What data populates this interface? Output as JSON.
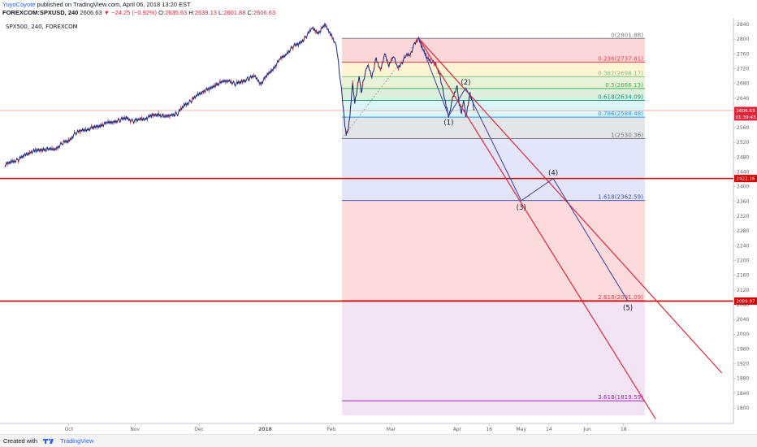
{
  "header": {
    "author": "YuyoCoyote",
    "published": "published on TradingView.com, April 06, 2018 13:20 EST",
    "symbol": "FOREXCOM:SPXUSD, 240",
    "last": "2606.63",
    "change": "▼ −24.25 (−0.92%)",
    "open_label": "O:",
    "open": "2635.63",
    "high_label": "H:",
    "high": "2639.13",
    "low_label": "L:",
    "low": "2601.88",
    "close_label": "C:",
    "close": "2606.63"
  },
  "footer": {
    "created_with": "Created with",
    "brand": "TradingView"
  },
  "chart_data": {
    "type": "line",
    "legend": "SPX500, 240, FOREXCOM",
    "ylim": [
      1780,
      2850
    ],
    "yticks": [
      1800,
      1840,
      1880,
      1920,
      1960,
      2000,
      2040,
      2080,
      2120,
      2160,
      2200,
      2240,
      2280,
      2320,
      2360,
      2400,
      2440,
      2480,
      2520,
      2560,
      2600,
      2640,
      2680,
      2720,
      2760,
      2800,
      2840
    ],
    "xticks": [
      {
        "label": "Oct",
        "day": 30,
        "bold": false
      },
      {
        "label": "Nov",
        "day": 61,
        "bold": false
      },
      {
        "label": "Dec",
        "day": 91,
        "bold": false
      },
      {
        "label": "2018",
        "day": 122,
        "bold": true
      },
      {
        "label": "Feb",
        "day": 153,
        "bold": false
      },
      {
        "label": "Mar",
        "day": 181,
        "bold": false
      },
      {
        "label": "Apr",
        "day": 212,
        "bold": false
      },
      {
        "label": "16",
        "day": 227,
        "bold": false
      },
      {
        "label": "May",
        "day": 242,
        "bold": false
      },
      {
        "label": "14",
        "day": 255,
        "bold": false
      },
      {
        "label": "Jun",
        "day": 273,
        "bold": false
      },
      {
        "label": "18",
        "day": 290,
        "bold": false
      }
    ],
    "series": [
      {
        "values": [
          [
            0,
            2458
          ],
          [
            3,
            2468
          ],
          [
            6,
            2472
          ],
          [
            9,
            2484
          ],
          [
            12,
            2495
          ],
          [
            15,
            2497
          ],
          [
            18,
            2502
          ],
          [
            21,
            2500
          ],
          [
            24,
            2503
          ],
          [
            27,
            2519
          ],
          [
            30,
            2524
          ],
          [
            33,
            2545
          ],
          [
            36,
            2552
          ],
          [
            39,
            2557
          ],
          [
            42,
            2560
          ],
          [
            45,
            2567
          ],
          [
            48,
            2572
          ],
          [
            51,
            2576
          ],
          [
            54,
            2581
          ],
          [
            57,
            2587
          ],
          [
            60,
            2577
          ],
          [
            63,
            2582
          ],
          [
            66,
            2586
          ],
          [
            69,
            2592
          ],
          [
            72,
            2597
          ],
          [
            75,
            2588
          ],
          [
            78,
            2595
          ],
          [
            81,
            2598
          ],
          [
            84,
            2621
          ],
          [
            87,
            2631
          ],
          [
            90,
            2647
          ],
          [
            93,
            2660
          ],
          [
            96,
            2664
          ],
          [
            99,
            2678
          ],
          [
            102,
            2683
          ],
          [
            105,
            2688
          ],
          [
            108,
            2678
          ],
          [
            111,
            2685
          ],
          [
            114,
            2692
          ],
          [
            117,
            2700
          ],
          [
            120,
            2680
          ],
          [
            123,
            2702
          ],
          [
            126,
            2722
          ],
          [
            129,
            2745
          ],
          [
            132,
            2760
          ],
          [
            135,
            2780
          ],
          [
            138,
            2788
          ],
          [
            141,
            2805
          ],
          [
            144,
            2830
          ],
          [
            147,
            2818
          ],
          [
            150,
            2838
          ],
          [
            153,
            2812
          ],
          [
            155,
            2788
          ],
          [
            156,
            2755
          ],
          [
            157,
            2702
          ],
          [
            158,
            2648
          ],
          [
            159,
            2588
          ],
          [
            160,
            2540
          ],
          [
            161,
            2560
          ],
          [
            162,
            2610
          ],
          [
            163,
            2680
          ],
          [
            164,
            2625
          ],
          [
            165,
            2660
          ],
          [
            166,
            2705
          ],
          [
            167,
            2650
          ],
          [
            168,
            2688
          ],
          [
            170,
            2730
          ],
          [
            172,
            2700
          ],
          [
            174,
            2745
          ],
          [
            176,
            2715
          ],
          [
            178,
            2760
          ],
          [
            180,
            2728
          ],
          [
            182,
            2758
          ],
          [
            184,
            2720
          ],
          [
            186,
            2735
          ],
          [
            188,
            2755
          ],
          [
            190,
            2760
          ],
          [
            192,
            2785
          ],
          [
            194,
            2801.88
          ],
          [
            196,
            2770
          ],
          [
            198,
            2750
          ],
          [
            200,
            2740
          ],
          [
            202,
            2730
          ],
          [
            204,
            2700
          ],
          [
            206,
            2640
          ],
          [
            208,
            2592
          ],
          [
            210,
            2640
          ],
          [
            212,
            2672
          ],
          [
            213,
            2620
          ],
          [
            214,
            2600
          ],
          [
            215,
            2640
          ],
          [
            216,
            2585
          ],
          [
            218,
            2655
          ],
          [
            219,
            2635
          ],
          [
            220,
            2606.63
          ]
        ]
      }
    ],
    "fib_levels": [
      {
        "ratio": "0",
        "price": 2801.88,
        "text": "0(2801.88)",
        "color": "#787b86"
      },
      {
        "ratio": "0.236",
        "price": 2737.81,
        "text": "0.236(2737.81)",
        "color": "#f23645"
      },
      {
        "ratio": "0.382",
        "price": 2698.17,
        "text": "0.382(2698.17)",
        "color": "#81c784"
      },
      {
        "ratio": "0.5",
        "price": 2666.13,
        "text": "0.5(2666.13)",
        "color": "#4caf50"
      },
      {
        "ratio": "0.618",
        "price": 2634.09,
        "text": "0.618(2634.09)",
        "color": "#089981"
      },
      {
        "ratio": "0.786",
        "price": 2588.48,
        "text": "0.786(2588.48)",
        "color": "#2196f3"
      },
      {
        "ratio": "1",
        "price": 2530.36,
        "text": "1(2530.36)",
        "color": "#787b86"
      },
      {
        "ratio": "1.618",
        "price": 2362.59,
        "text": "1.618(2362.59)",
        "color": "#3f51b5"
      },
      {
        "ratio": "2.618",
        "price": 2091.09,
        "text": "2.618(2091.09)",
        "color": "#f23645"
      },
      {
        "ratio": "3.618",
        "price": 1819.59,
        "text": "3.618(1819.59)",
        "color": "#9c27b0"
      }
    ],
    "fib_zones": [
      {
        "from": 2801.88,
        "to": 2737.81,
        "color": "#f23645",
        "opacity": 0.2
      },
      {
        "from": 2737.81,
        "to": 2698.17,
        "color": "#ffd54f",
        "opacity": 0.25
      },
      {
        "from": 2698.17,
        "to": 2666.13,
        "color": "#aed581",
        "opacity": 0.3
      },
      {
        "from": 2666.13,
        "to": 2634.09,
        "color": "#66bb6a",
        "opacity": 0.22
      },
      {
        "from": 2634.09,
        "to": 2588.48,
        "color": "#4dd0e1",
        "opacity": 0.2
      },
      {
        "from": 2588.48,
        "to": 2530.36,
        "color": "#b2b5be",
        "opacity": 0.35
      },
      {
        "from": 2530.36,
        "to": 2362.59,
        "color": "#7e8be8",
        "opacity": 0.22
      },
      {
        "from": 2362.59,
        "to": 2091.09,
        "color": "#f23645",
        "opacity": 0.18
      },
      {
        "from": 2091.09,
        "to": 1780,
        "color": "#ba68c8",
        "opacity": 0.18
      }
    ],
    "fib_day_range": [
      158,
      300
    ],
    "fib_trend_line": [
      [
        158,
        2530.36
      ],
      [
        194,
        2801.88
      ]
    ],
    "waves": {
      "points": [
        {
          "label": "",
          "day": 194,
          "price": 2801.88
        },
        {
          "label": "(1)",
          "day": 208,
          "price": 2592
        },
        {
          "label": "(2)",
          "day": 216,
          "price": 2668
        },
        {
          "label": "(3)",
          "day": 242,
          "price": 2362
        },
        {
          "label": "(4)",
          "day": 257,
          "price": 2422
        },
        {
          "label": "(5)",
          "day": 292,
          "price": 2090
        }
      ],
      "color": "#3f3fa0"
    },
    "channel_lines": [
      {
        "from": [
          194,
          2801.88
        ],
        "to": [
          305,
          1770
        ]
      },
      {
        "from": [
          194,
          2801.88
        ],
        "to": [
          336,
          1895
        ]
      }
    ],
    "horizontal_lines": [
      {
        "price": 2422.16,
        "color": "#d50000",
        "tag": "2422.16"
      },
      {
        "price": 2089.97,
        "color": "#d50000",
        "tag": "2089.97"
      },
      {
        "price": 2606.63,
        "color": "#f7a7a7",
        "tag": ""
      }
    ],
    "price_tag": {
      "value": "2606.63",
      "countdown": "01:39:43",
      "color": "#e0243a"
    },
    "colors": {
      "candle_up": "#1a2a8a",
      "candle_down": "#c62828",
      "line": "#1a237e"
    },
    "grid": false
  }
}
